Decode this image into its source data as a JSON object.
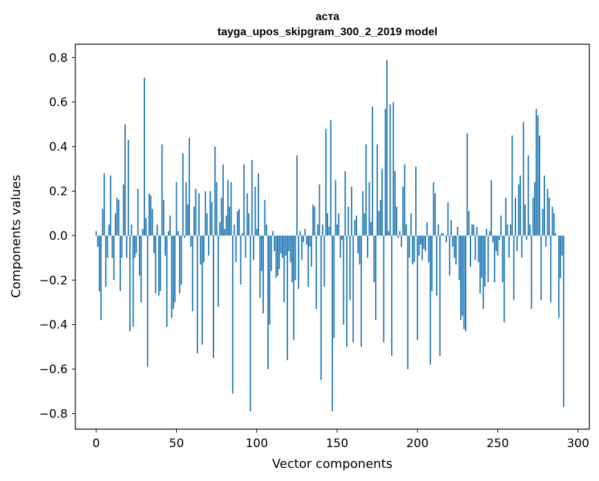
{
  "chart_data": {
    "type": "bar",
    "title": "аста",
    "subtitle": "tayga_upos_skipgram_300_2_2019 model",
    "xlabel": "Vector components",
    "ylabel": "Components values",
    "xlim": [
      -13,
      307
    ],
    "ylim": [
      -0.87,
      0.86
    ],
    "xticks": [
      0,
      50,
      100,
      150,
      200,
      250,
      300
    ],
    "yticks": [
      -0.8,
      -0.6,
      -0.4,
      -0.2,
      0.0,
      0.2,
      0.4,
      0.6,
      0.8
    ],
    "ytick_labels": [
      "−0.8",
      "−0.6",
      "−0.4",
      "−0.2",
      "0.0",
      "0.2",
      "0.4",
      "0.6",
      "0.8"
    ],
    "bar_color": "#1f77b4",
    "x": "0..299 (component index)",
    "values": [
      0.02,
      -0.05,
      -0.25,
      -0.38,
      0.12,
      0.28,
      -0.23,
      -0.1,
      0.05,
      0.27,
      -0.1,
      -0.2,
      0.1,
      0.17,
      0.16,
      -0.25,
      -0.1,
      0.23,
      0.5,
      -0.1,
      0.43,
      -0.43,
      0.05,
      -0.41,
      -0.1,
      -0.08,
      0.21,
      -0.18,
      -0.3,
      0.03,
      0.71,
      0.08,
      -0.59,
      0.19,
      0.18,
      0.12,
      -0.08,
      -0.26,
      0.05,
      -0.27,
      -0.25,
      0.41,
      0.16,
      -0.09,
      -0.41,
      0.02,
      0.09,
      -0.37,
      -0.33,
      -0.3,
      0.24,
      0.02,
      -0.26,
      -0.22,
      0.37,
      -0.01,
      0.24,
      0.14,
      0.44,
      -0.05,
      -0.34,
      0.13,
      0.21,
      -0.53,
      0.19,
      -0.13,
      -0.49,
      -0.12,
      0.2,
      0.1,
      -0.09,
      0.2,
      0.15,
      -0.55,
      0.4,
      0.24,
      -0.32,
      0.06,
      0.17,
      0.32,
      0.03,
      0.09,
      0.25,
      0.13,
      0.24,
      -0.71,
      0.05,
      -0.12,
      0.11,
      0.12,
      -0.22,
      0.01,
      0.32,
      -0.1,
      0.19,
      0.1,
      -0.79,
      0.34,
      -0.11,
      0.22,
      0.03,
      0.28,
      -0.28,
      -0.16,
      -0.35,
      0.16,
      0.05,
      -0.6,
      -0.4,
      -0.16,
      0.02,
      -0.07,
      -0.19,
      -0.18,
      -0.15,
      -0.08,
      -0.1,
      -0.3,
      -0.09,
      -0.56,
      -0.07,
      -0.12,
      -0.21,
      -0.47,
      -0.2,
      0.36,
      -0.24,
      0.02,
      -0.11,
      -0.03,
      0.03,
      -0.04,
      -0.23,
      -0.05,
      -0.14,
      0.14,
      0.13,
      -0.33,
      0.05,
      0.23,
      -0.65,
      0.05,
      -0.23,
      0.48,
      0.1,
      0.04,
      0.52,
      -0.79,
      -0.46,
      0.25,
      0.05,
      0.1,
      -0.1,
      -0.02,
      -0.4,
      0.29,
      -0.5,
      0.13,
      -0.29,
      0.22,
      -0.48,
      0.07,
      0.09,
      -0.08,
      -0.13,
      -0.5,
      0.2,
      0.1,
      0.41,
      -0.1,
      0.24,
      0.06,
      0.58,
      -0.21,
      -0.38,
      0.41,
      0.11,
      0.16,
      0.3,
      -0.48,
      0.57,
      0.79,
      0.02,
      0.59,
      -0.54,
      0.6,
      0.29,
      0.13,
      -0.01,
      0.02,
      -0.05,
      0.22,
      0.32,
      0.05,
      -0.6,
      -0.1,
      0.1,
      -0.13,
      -0.12,
      0.31,
      -0.47,
      -0.09,
      -0.04,
      -0.11,
      -0.06,
      -0.07,
      0.06,
      -0.12,
      -0.58,
      -0.25,
      0.24,
      0.19,
      -0.27,
      0.05,
      -0.54,
      0.01,
      0.01,
      0.0,
      -0.03,
      0.15,
      -0.18,
      0.07,
      -0.05,
      -0.1,
      -0.13,
      0.04,
      -0.2,
      -0.38,
      -0.36,
      -0.42,
      -0.43,
      0.46,
      0.11,
      -0.14,
      0.05,
      0.05,
      -0.11,
      0.04,
      -0.12,
      -0.26,
      -0.19,
      -0.33,
      -0.23,
      0.03,
      -0.21,
      0.02,
      0.25,
      -0.03,
      -0.21,
      -0.07,
      -0.09,
      -0.02,
      0.09,
      -0.21,
      -0.39,
      0.17,
      0.05,
      -0.1,
      0.05,
      0.45,
      -0.29,
      0.17,
      -0.07,
      0.23,
      0.27,
      -0.1,
      0.51,
      0.14,
      -0.02,
      0.36,
      0.05,
      -0.33,
      0.17,
      0.24,
      0.57,
      0.54,
      0.45,
      -0.29,
      0.12,
      0.27,
      -0.05,
      0.21,
      0.17,
      -0.3,
      0.13,
      0.1,
      0.01,
      0.0,
      -0.37,
      -0.19,
      -0.09,
      -0.77
    ]
  }
}
